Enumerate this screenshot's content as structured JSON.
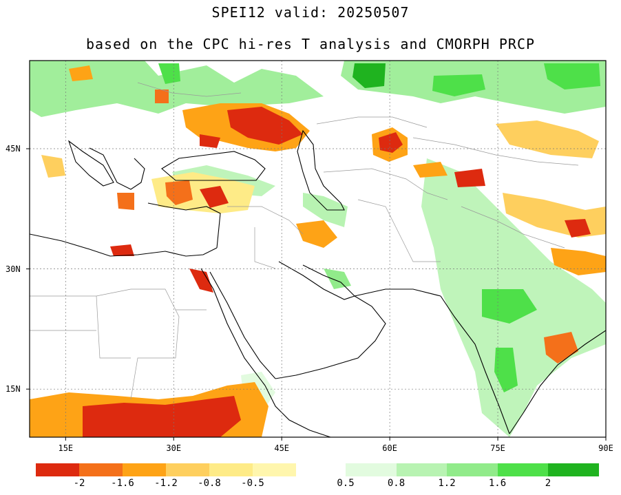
{
  "title": "SPEI12  valid: 20250507",
  "subtitle": "based on the CPC hi-res T analysis and CMORPH PRCP",
  "map": {
    "lon_range": [
      10,
      90
    ],
    "lat_range": [
      9,
      56
    ],
    "lon_ticks": [
      {
        "value": 15,
        "label": "15E"
      },
      {
        "value": 30,
        "label": "30E"
      },
      {
        "value": 45,
        "label": "45E"
      },
      {
        "value": 60,
        "label": "60E"
      },
      {
        "value": 75,
        "label": "75E"
      },
      {
        "value": 90,
        "label": "90E"
      }
    ],
    "lat_ticks": [
      {
        "value": 45,
        "label": "45N"
      },
      {
        "value": 30,
        "label": "30N"
      },
      {
        "value": 15,
        "label": "15N"
      }
    ],
    "grid": true
  },
  "colorbar": {
    "dry": {
      "colors": [
        "#dd2a0f",
        "#f4701a",
        "#fea316",
        "#fecf5e",
        "#feeb87",
        "#fff6ad"
      ],
      "labels": [
        "-2",
        "-1.6",
        "-1.2",
        "-0.8",
        "-0.5"
      ]
    },
    "wet": {
      "colors": [
        "#e2fbdf",
        "#b8f3b2",
        "#91eb8a",
        "#4ee049",
        "#1fb31f"
      ],
      "labels": [
        "0.5",
        "0.8",
        "1.2",
        "1.6",
        "2"
      ]
    }
  }
}
